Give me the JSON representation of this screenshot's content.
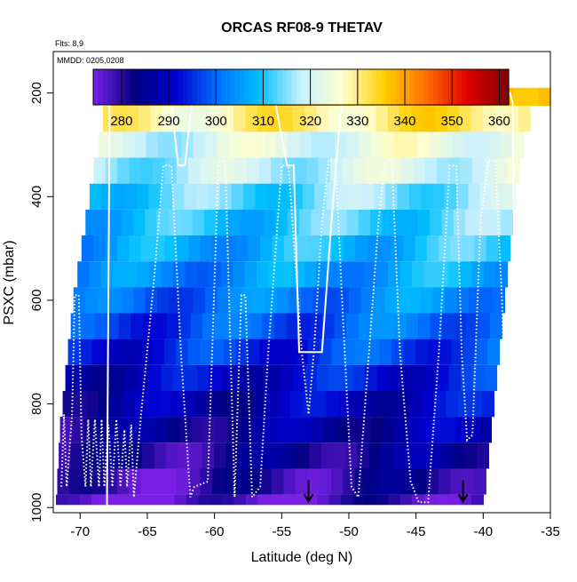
{
  "chart_data": {
    "type": "heatmap",
    "title": "ORCAS RF08-9 THETAV",
    "flights_note": "Flts: 8,9",
    "dates_note": "MMDD: 0205,0208",
    "xlabel": "Latitude (deg N)",
    "ylabel": "PSXC (mbar)",
    "xlim": [
      -72,
      -35
    ],
    "ylim": [
      1010,
      120
    ],
    "x_ticks": [
      -70,
      -65,
      -60,
      -55,
      -50,
      -45,
      -40,
      -35
    ],
    "y_ticks": [
      200,
      400,
      600,
      800,
      1000
    ],
    "colorbar": {
      "range": [
        274,
        362
      ],
      "ticks": [
        280,
        290,
        300,
        310,
        320,
        330,
        340,
        350,
        360
      ],
      "colors": [
        "#7a1fe6",
        "#000080",
        "#0000d0",
        "#0070ff",
        "#00c0ff",
        "#c8f0ff",
        "#ffffd0",
        "#ffd000",
        "#ff7000",
        "#e00000",
        "#800000"
      ]
    },
    "layers": [
      {
        "p": 200,
        "theta": 338,
        "lat_start": -67.8,
        "lat_end": -35
      },
      {
        "p": 250,
        "theta": 330,
        "lat_start": -68.3,
        "lat_end": -36.5
      },
      {
        "p": 300,
        "theta": 322,
        "lat_start": -68.6,
        "lat_end": -37.0
      },
      {
        "p": 350,
        "theta": 319,
        "lat_start": -69.0,
        "lat_end": -37.3
      },
      {
        "p": 400,
        "theta": 314,
        "lat_start": -69.3,
        "lat_end": -37.6
      },
      {
        "p": 450,
        "theta": 311,
        "lat_start": -69.6,
        "lat_end": -37.8
      },
      {
        "p": 500,
        "theta": 308,
        "lat_start": -69.9,
        "lat_end": -38.0
      },
      {
        "p": 550,
        "theta": 305,
        "lat_start": -70.2,
        "lat_end": -38.2
      },
      {
        "p": 600,
        "theta": 302,
        "lat_start": -70.5,
        "lat_end": -38.4
      },
      {
        "p": 650,
        "theta": 299,
        "lat_start": -70.7,
        "lat_end": -38.6
      },
      {
        "p": 700,
        "theta": 296,
        "lat_start": -70.9,
        "lat_end": -38.8
      },
      {
        "p": 750,
        "theta": 292,
        "lat_start": -71.1,
        "lat_end": -39.0
      },
      {
        "p": 800,
        "theta": 289,
        "lat_start": -71.3,
        "lat_end": -39.2
      },
      {
        "p": 850,
        "theta": 286,
        "lat_start": -71.5,
        "lat_end": -39.4
      },
      {
        "p": 900,
        "theta": 283,
        "lat_start": -71.6,
        "lat_end": -39.6
      },
      {
        "p": 950,
        "theta": 280,
        "lat_start": -71.7,
        "lat_end": -39.8
      },
      {
        "p": 1000,
        "theta": 277,
        "lat_start": -71.8,
        "lat_end": -40.0
      }
    ],
    "track_upper": [
      [
        -68,
        1000
      ],
      [
        -67.8,
        200
      ],
      [
        -64,
        190
      ],
      [
        -63.3,
        200
      ],
      [
        -62.7,
        340
      ],
      [
        -62.2,
        340
      ],
      [
        -61.6,
        200
      ],
      [
        -56.3,
        190
      ],
      [
        -55.6,
        200
      ],
      [
        -54.6,
        340
      ],
      [
        -54.1,
        340
      ],
      [
        -53.7,
        700
      ],
      [
        -52,
        700
      ],
      [
        -51.3,
        450
      ],
      [
        -50.5,
        200
      ],
      [
        -50,
        190
      ],
      [
        -49.5,
        200
      ],
      [
        -38.5,
        195
      ],
      [
        -38,
        200
      ],
      [
        -37.8,
        220
      ],
      [
        -37.5,
        1000
      ]
    ],
    "track_lower": [
      [
        -71.4,
        960
      ],
      [
        -71.2,
        820
      ],
      [
        -71,
        960
      ],
      [
        -70.6,
        820
      ],
      [
        -70.4,
        590
      ],
      [
        -70.1,
        590
      ],
      [
        -69.9,
        860
      ],
      [
        -69.6,
        960
      ],
      [
        -69.4,
        830
      ],
      [
        -69.2,
        960
      ],
      [
        -68.9,
        830
      ],
      [
        -68.6,
        960
      ],
      [
        -68.4,
        830
      ],
      [
        -68.2,
        960
      ],
      [
        -67.9,
        840
      ],
      [
        -67.6,
        960
      ],
      [
        -67.3,
        830
      ],
      [
        -67,
        960
      ],
      [
        -66.7,
        850
      ],
      [
        -66.5,
        960
      ],
      [
        -66.2,
        840
      ],
      [
        -66,
        980
      ],
      [
        -65.5,
        830
      ],
      [
        -64.5,
        560
      ],
      [
        -63.8,
        340
      ],
      [
        -63.2,
        340
      ],
      [
        -62.5,
        700
      ],
      [
        -61.8,
        980
      ],
      [
        -61.5,
        960
      ],
      [
        -60.5,
        950
      ],
      [
        -59.7,
        330
      ],
      [
        -59.2,
        330
      ],
      [
        -58.5,
        980
      ],
      [
        -58,
        590
      ],
      [
        -57.7,
        590
      ],
      [
        -57.2,
        980
      ],
      [
        -56.6,
        960
      ],
      [
        -56,
        700
      ],
      [
        -55,
        340
      ],
      [
        -54.5,
        340
      ],
      [
        -53.5,
        700
      ],
      [
        -53,
        820
      ],
      [
        -52.6,
        700
      ],
      [
        -52,
        450
      ],
      [
        -51.5,
        330
      ],
      [
        -51,
        330
      ],
      [
        -50.5,
        600
      ],
      [
        -49.8,
        960
      ],
      [
        -49.3,
        980
      ],
      [
        -48.5,
        700
      ],
      [
        -47.8,
        450
      ],
      [
        -47.3,
        330
      ],
      [
        -46.8,
        330
      ],
      [
        -46.2,
        700
      ],
      [
        -45.4,
        950
      ],
      [
        -44.8,
        990
      ],
      [
        -44.1,
        990
      ],
      [
        -43.3,
        700
      ],
      [
        -42.5,
        340
      ],
      [
        -42,
        340
      ],
      [
        -41.6,
        700
      ],
      [
        -41.2,
        870
      ],
      [
        -40.8,
        860
      ],
      [
        -40.2,
        450
      ],
      [
        -39.6,
        330
      ],
      [
        -39.1,
        330
      ],
      [
        -38.6,
        600
      ],
      [
        -38.2,
        980
      ],
      [
        -37.9,
        990
      ]
    ],
    "markers": [
      {
        "lat": -53,
        "p": 985
      },
      {
        "lat": -41.5,
        "p": 985
      }
    ],
    "legend_placement": "none",
    "grid": false
  }
}
